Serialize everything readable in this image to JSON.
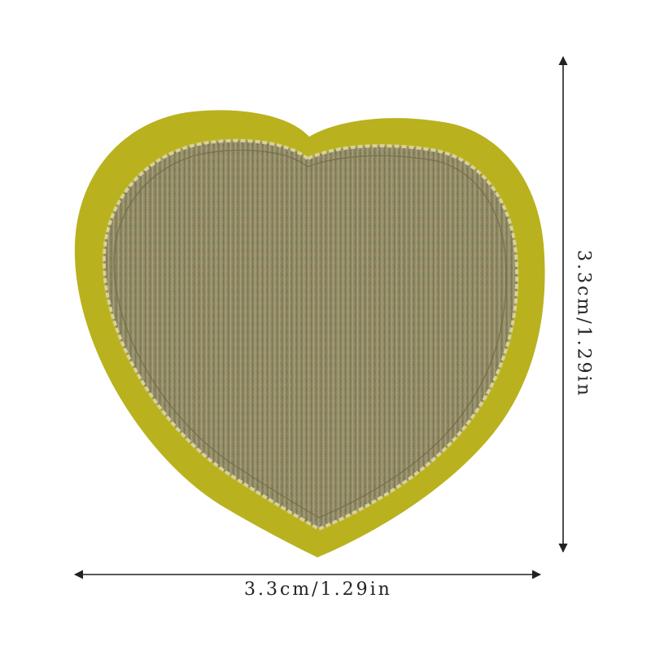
{
  "product": {
    "shape": "heart-patch",
    "felt_color": "#b9b21e",
    "embroidery_color": "#8f8a62",
    "stitch_color": "#d7d0a0"
  },
  "dimensions": {
    "width_label": "3.3cm/1.29in",
    "height_label": "3.3cm/1.29in",
    "line_color": "#222222"
  }
}
